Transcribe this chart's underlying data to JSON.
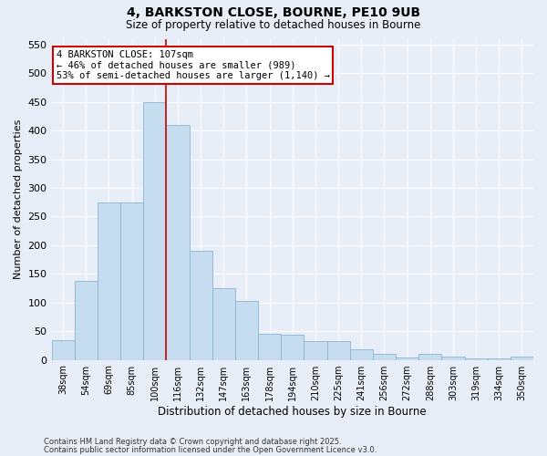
{
  "title1": "4, BARKSTON CLOSE, BOURNE, PE10 9UB",
  "title2": "Size of property relative to detached houses in Bourne",
  "xlabel": "Distribution of detached houses by size in Bourne",
  "ylabel": "Number of detached properties",
  "categories": [
    "38sqm",
    "54sqm",
    "69sqm",
    "85sqm",
    "100sqm",
    "116sqm",
    "132sqm",
    "147sqm",
    "163sqm",
    "178sqm",
    "194sqm",
    "210sqm",
    "225sqm",
    "241sqm",
    "256sqm",
    "272sqm",
    "288sqm",
    "303sqm",
    "319sqm",
    "334sqm",
    "350sqm"
  ],
  "values": [
    35,
    137,
    275,
    275,
    450,
    410,
    190,
    125,
    103,
    46,
    44,
    32,
    32,
    18,
    10,
    4,
    10,
    5,
    3,
    2,
    5
  ],
  "bar_color": "#c6ddf0",
  "bar_edge_color": "#8ab4d4",
  "vline_x": 4.5,
  "vline_color": "#cc0000",
  "annotation_text": "4 BARKSTON CLOSE: 107sqm\n← 46% of detached houses are smaller (989)\n53% of semi-detached houses are larger (1,140) →",
  "annotation_box_color": "#ffffff",
  "annotation_box_edge": "#cc0000",
  "ylim": [
    0,
    560
  ],
  "yticks": [
    0,
    50,
    100,
    150,
    200,
    250,
    300,
    350,
    400,
    450,
    500,
    550
  ],
  "background_color": "#e8eef8",
  "grid_color": "#ffffff",
  "footer1": "Contains HM Land Registry data © Crown copyright and database right 2025.",
  "footer2": "Contains public sector information licensed under the Open Government Licence v3.0."
}
